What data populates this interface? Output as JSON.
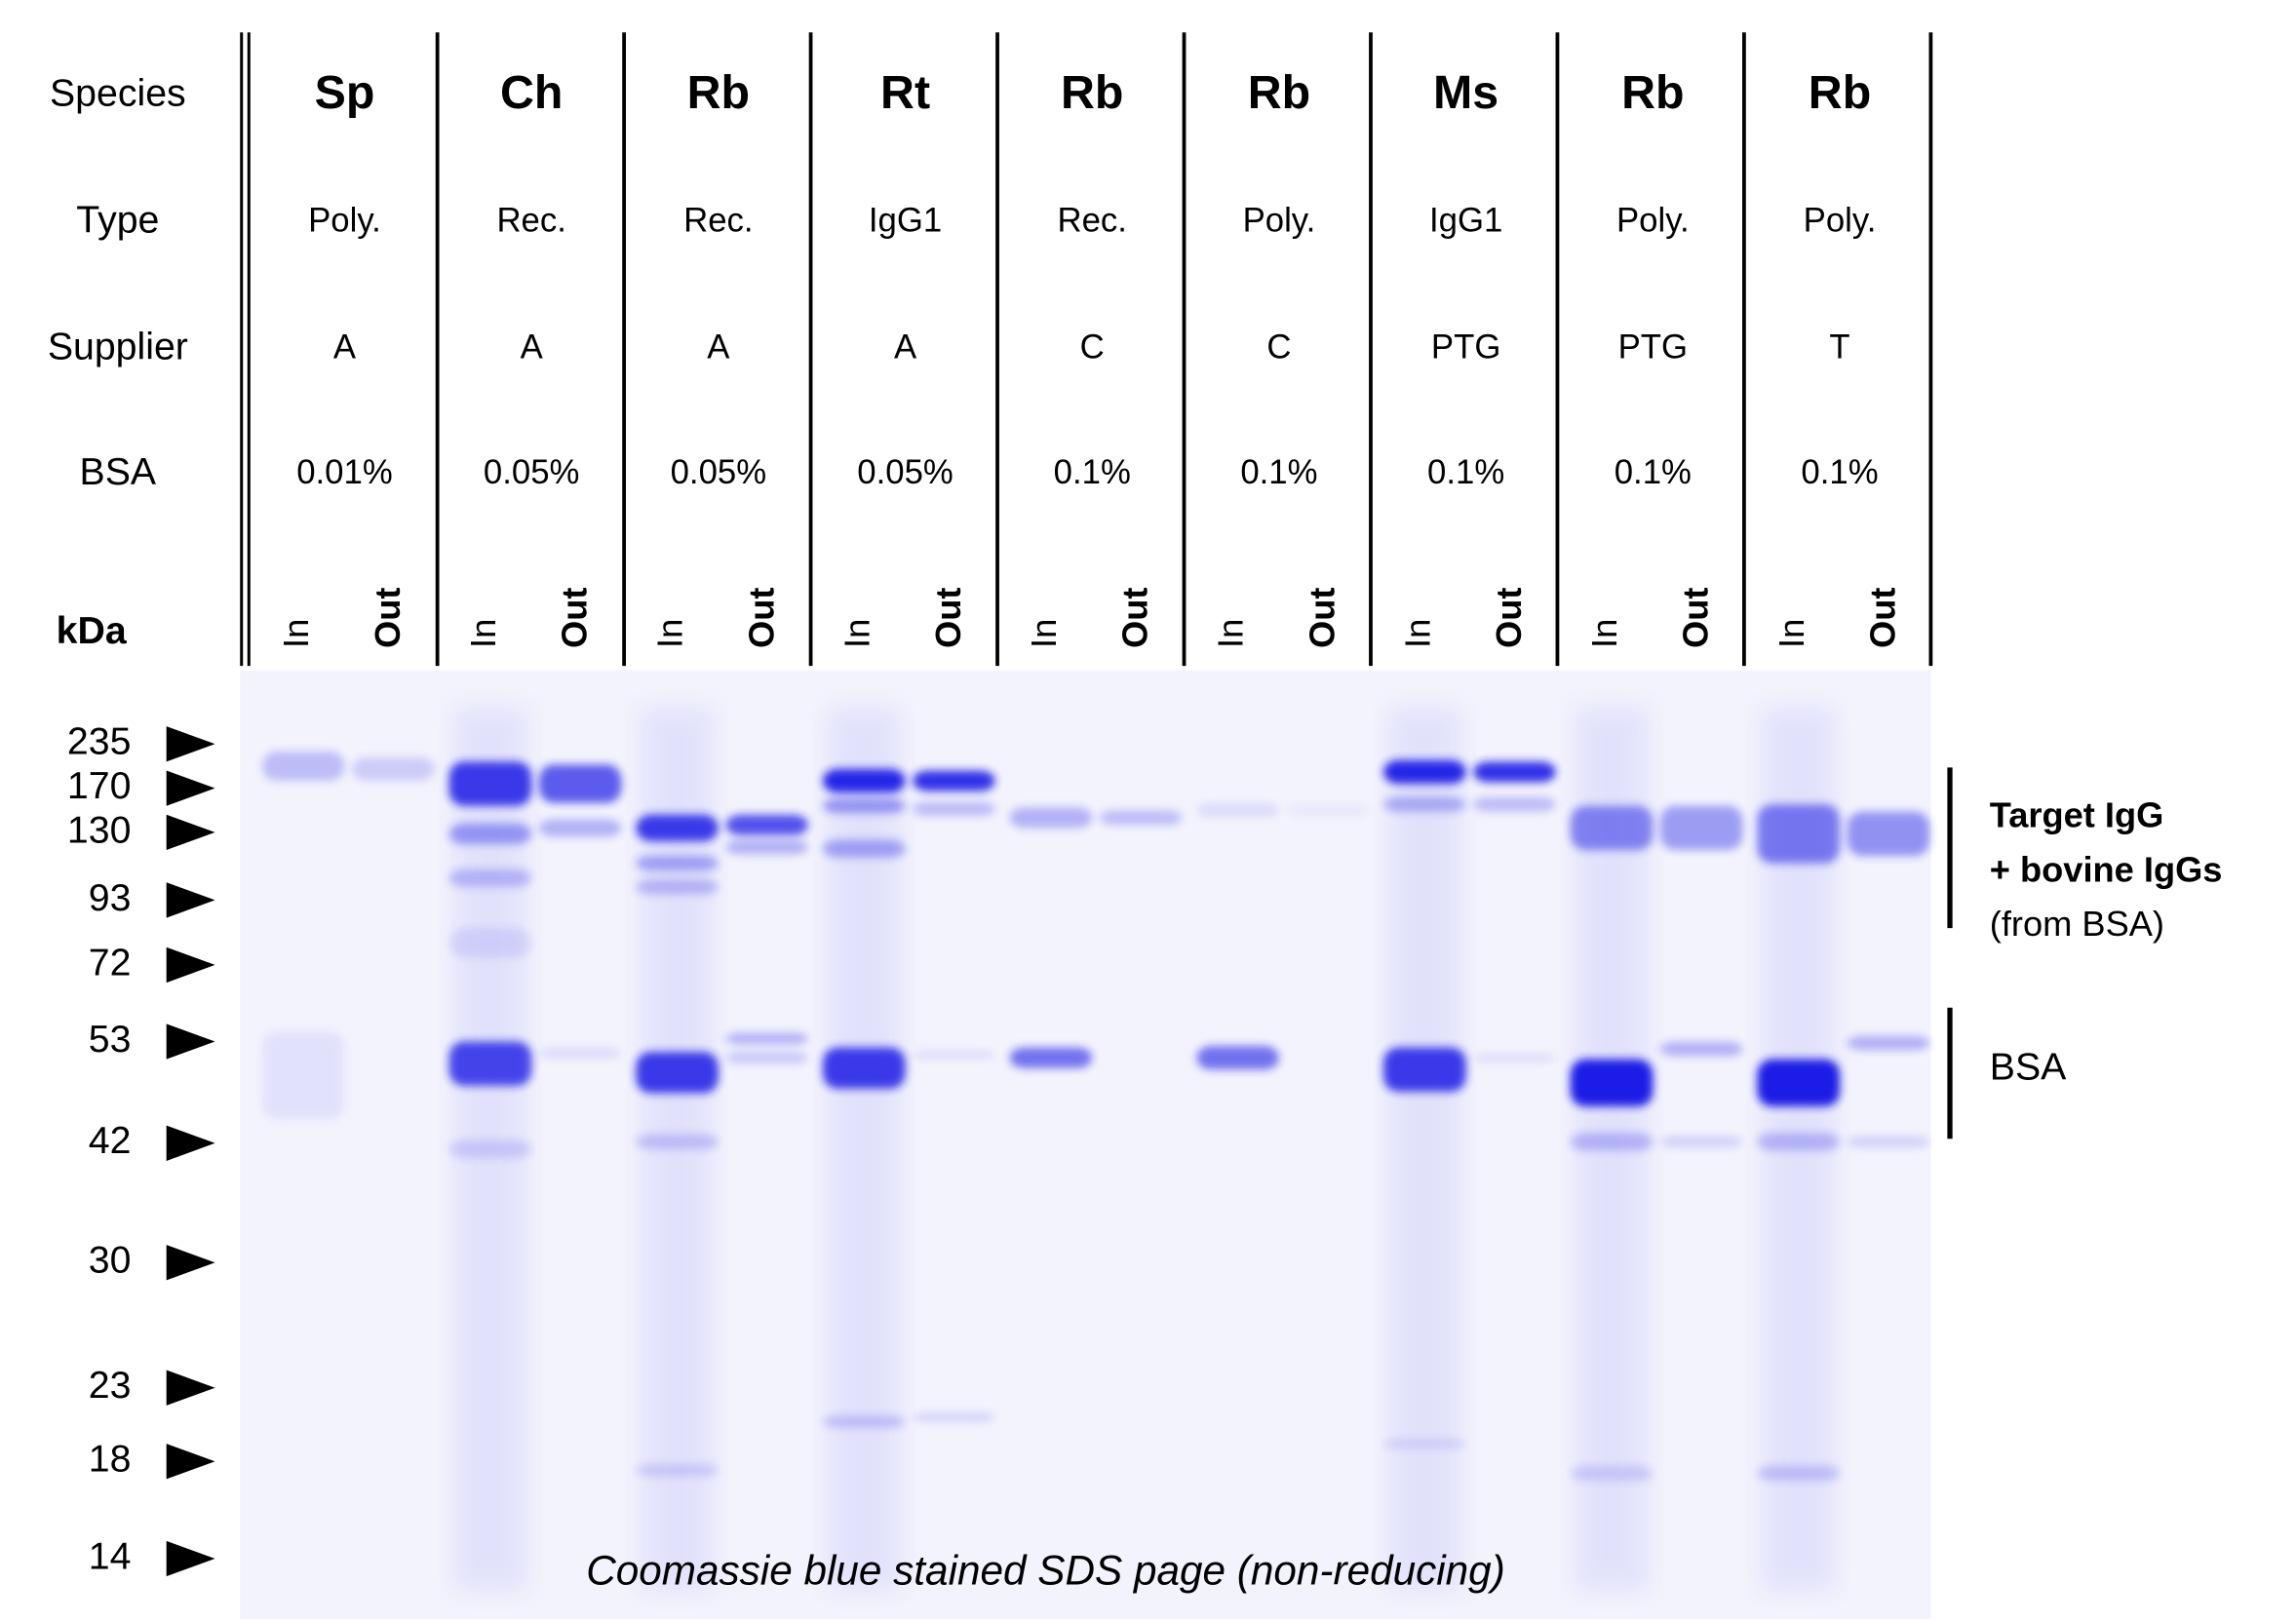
{
  "row_labels": {
    "species": "Species",
    "type": "Type",
    "supplier": "Supplier",
    "bsa": "BSA",
    "kda": "kDa"
  },
  "columns": [
    {
      "species": "Sp",
      "type": "Poly.",
      "supplier": "A",
      "bsa": "0.01%",
      "lanes": [
        "In",
        "Out"
      ]
    },
    {
      "species": "Ch",
      "type": "Rec.",
      "supplier": "A",
      "bsa": "0.05%",
      "lanes": [
        "In",
        "Out"
      ]
    },
    {
      "species": "Rb",
      "type": "Rec.",
      "supplier": "A",
      "bsa": "0.05%",
      "lanes": [
        "In",
        "Out"
      ]
    },
    {
      "species": "Rt",
      "type": "IgG1",
      "supplier": "A",
      "bsa": "0.05%",
      "lanes": [
        "In",
        "Out"
      ]
    },
    {
      "species": "Rb",
      "type": "Rec.",
      "supplier": "C",
      "bsa": "0.1%",
      "lanes": [
        "In",
        "Out"
      ]
    },
    {
      "species": "Rb",
      "type": "Poly.",
      "supplier": "C",
      "bsa": "0.1%",
      "lanes": [
        "In",
        "Out"
      ]
    },
    {
      "species": "Ms",
      "type": "IgG1",
      "supplier": "PTG",
      "bsa": "0.1%",
      "lanes": [
        "In",
        "Out"
      ]
    },
    {
      "species": "Rb",
      "type": "Poly.",
      "supplier": "PTG",
      "bsa": "0.1%",
      "lanes": [
        "In",
        "Out"
      ]
    },
    {
      "species": "Rb",
      "type": "Poly.",
      "supplier": "T",
      "bsa": "0.1%",
      "lanes": [
        "In",
        "Out"
      ]
    }
  ],
  "markers": [
    235,
    170,
    130,
    93,
    72,
    53,
    42,
    30,
    23,
    18,
    14
  ],
  "annotations": [
    {
      "lines": [
        "Target IgG",
        "+ bovine IgGs",
        "(from BSA)"
      ]
    },
    {
      "lines": [
        "BSA"
      ]
    }
  ],
  "caption": "Coomassie blue stained SDS page (non-reducing)"
}
